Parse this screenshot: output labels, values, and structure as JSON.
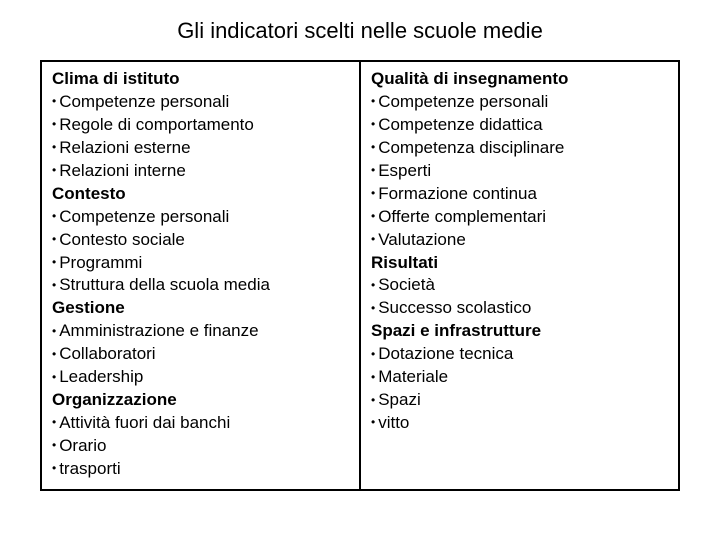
{
  "title": "Gli indicatori scelti nelle scuole  medie",
  "bullet": "•",
  "colors": {
    "background": "#ffffff",
    "text": "#000000",
    "border": "#000000"
  },
  "fontsizes": {
    "title": 22,
    "body": 17
  },
  "columns": [
    {
      "groups": [
        {
          "heading": "Clima di istituto",
          "items": [
            "Competenze personali",
            "Regole di comportamento",
            "Relazioni esterne",
            "Relazioni interne"
          ]
        },
        {
          "heading": "Contesto",
          "items": [
            "Competenze personali",
            "Contesto sociale",
            "Programmi",
            "Struttura della scuola media"
          ]
        },
        {
          "heading": "Gestione",
          "items": [
            "Amministrazione e finanze",
            "Collaboratori",
            "Leadership"
          ]
        },
        {
          "heading": "Organizzazione",
          "items": [
            "Attività fuori dai banchi",
            "Orario",
            "trasporti"
          ]
        }
      ]
    },
    {
      "groups": [
        {
          "heading": "Qualità di insegnamento",
          "items": [
            "Competenze personali",
            "Competenze didattica",
            "Competenza disciplinare",
            "Esperti",
            "Formazione continua",
            "Offerte complementari",
            "Valutazione"
          ]
        },
        {
          "heading": "Risultati",
          "items": [
            "Società",
            "Successo scolastico"
          ]
        },
        {
          "heading": "Spazi e infrastrutture",
          "items": [
            "Dotazione tecnica",
            "Materiale",
            "Spazi",
            "vitto"
          ]
        }
      ]
    }
  ]
}
